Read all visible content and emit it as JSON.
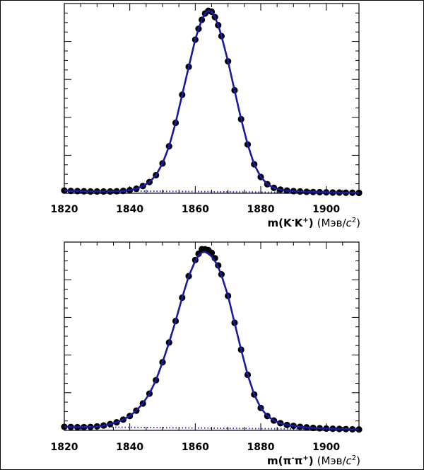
{
  "chart_data": [
    {
      "type": "scatter",
      "xlim": [
        1820,
        1910
      ],
      "ylim": [
        0,
        1.05
      ],
      "x_ticks": [
        "1820",
        "1840",
        "1860",
        "1880",
        "1900"
      ],
      "xlabel_main": "m(K",
      "xlabel_sup1": "-",
      "xlabel_mid": "K",
      "xlabel_sup2": "+",
      "xlabel_close": ")",
      "xlabel_units": "(Мэв/",
      "xlabel_c": "c",
      "xlabel_units_sup": "2",
      "xlabel_units_close": ")",
      "grid": false,
      "colors": {
        "points": "#000000",
        "fit": "#1a1aa0",
        "background": "#2a2ad0"
      },
      "series": [
        {
          "kind": "points",
          "x": [
            1820,
            1822,
            1824,
            1826,
            1828,
            1830,
            1832,
            1834,
            1836,
            1838,
            1840,
            1842,
            1844,
            1846,
            1848,
            1850,
            1852,
            1854,
            1856,
            1858,
            1860,
            1861,
            1862,
            1863,
            1864,
            1865,
            1866,
            1867,
            1868,
            1870,
            1872,
            1874,
            1876,
            1878,
            1880,
            1882,
            1884,
            1886,
            1888,
            1890,
            1892,
            1894,
            1896,
            1898,
            1900,
            1902,
            1904,
            1906,
            1908,
            1910
          ],
          "y": [
            0.015,
            0.013,
            0.012,
            0.011,
            0.01,
            0.01,
            0.01,
            0.01,
            0.011,
            0.013,
            0.017,
            0.025,
            0.04,
            0.062,
            0.1,
            0.165,
            0.26,
            0.39,
            0.545,
            0.7,
            0.85,
            0.91,
            0.96,
            0.995,
            1.01,
            1.005,
            0.975,
            0.93,
            0.87,
            0.73,
            0.57,
            0.41,
            0.27,
            0.16,
            0.09,
            0.05,
            0.03,
            0.02,
            0.015,
            0.012,
            0.01,
            0.008,
            0.007,
            0.006,
            0.005,
            0.004,
            0.004,
            0.003,
            0.003,
            0.002
          ]
        },
        {
          "kind": "fit-line",
          "x": [
            1820,
            1822,
            1824,
            1826,
            1828,
            1830,
            1832,
            1834,
            1836,
            1838,
            1840,
            1842,
            1844,
            1846,
            1848,
            1850,
            1852,
            1854,
            1856,
            1858,
            1860,
            1861,
            1862,
            1863,
            1864,
            1865,
            1866,
            1867,
            1868,
            1870,
            1872,
            1874,
            1876,
            1878,
            1880,
            1882,
            1884,
            1886,
            1888,
            1890,
            1892,
            1894,
            1896,
            1898,
            1900,
            1902,
            1904,
            1906,
            1908,
            1910
          ],
          "y": [
            0.015,
            0.013,
            0.012,
            0.011,
            0.01,
            0.01,
            0.01,
            0.01,
            0.011,
            0.013,
            0.017,
            0.025,
            0.04,
            0.062,
            0.1,
            0.165,
            0.26,
            0.39,
            0.545,
            0.7,
            0.85,
            0.91,
            0.96,
            0.995,
            1.01,
            1.005,
            0.975,
            0.93,
            0.87,
            0.73,
            0.57,
            0.41,
            0.27,
            0.16,
            0.09,
            0.05,
            0.03,
            0.02,
            0.015,
            0.012,
            0.01,
            0.008,
            0.007,
            0.006,
            0.005,
            0.004,
            0.004,
            0.003,
            0.003,
            0.002
          ]
        },
        {
          "kind": "background-dotted",
          "x": [
            1820,
            1910
          ],
          "y": [
            0.015,
            0.002
          ]
        }
      ]
    },
    {
      "type": "scatter",
      "xlim": [
        1820,
        1910
      ],
      "ylim": [
        0,
        1.05
      ],
      "x_ticks": [
        "1820",
        "1840",
        "1860",
        "1880",
        "1900"
      ],
      "xlabel_main": "m(π",
      "xlabel_sup1": "-",
      "xlabel_mid": "π",
      "xlabel_sup2": "+",
      "xlabel_close": ")",
      "xlabel_units": "(Мэв/",
      "xlabel_c": "c",
      "xlabel_units_sup": "2",
      "xlabel_units_close": ")",
      "grid": false,
      "colors": {
        "points": "#000000",
        "fit": "#1a1aa0",
        "background": "#2a2ad0"
      },
      "series": [
        {
          "kind": "points",
          "x": [
            1820,
            1822,
            1824,
            1826,
            1828,
            1830,
            1832,
            1834,
            1836,
            1838,
            1840,
            1842,
            1844,
            1846,
            1848,
            1850,
            1852,
            1854,
            1856,
            1858,
            1860,
            1861,
            1862,
            1863,
            1864,
            1865,
            1866,
            1867,
            1868,
            1870,
            1872,
            1874,
            1876,
            1878,
            1880,
            1882,
            1884,
            1886,
            1888,
            1890,
            1892,
            1894,
            1896,
            1898,
            1900,
            1902,
            1904,
            1906,
            1908,
            1910
          ],
          "y": [
            0.02,
            0.019,
            0.018,
            0.018,
            0.019,
            0.022,
            0.027,
            0.035,
            0.045,
            0.06,
            0.08,
            0.11,
            0.15,
            0.205,
            0.28,
            0.38,
            0.49,
            0.61,
            0.74,
            0.86,
            0.95,
            0.985,
            1.01,
            1.01,
            1.005,
            0.99,
            0.96,
            0.92,
            0.87,
            0.75,
            0.6,
            0.45,
            0.31,
            0.2,
            0.125,
            0.08,
            0.055,
            0.04,
            0.03,
            0.025,
            0.02,
            0.017,
            0.014,
            0.012,
            0.01,
            0.009,
            0.008,
            0.007,
            0.006,
            0.005
          ]
        },
        {
          "kind": "fit-line",
          "x": [
            1820,
            1822,
            1824,
            1826,
            1828,
            1830,
            1832,
            1834,
            1836,
            1838,
            1840,
            1842,
            1844,
            1846,
            1848,
            1850,
            1852,
            1854,
            1856,
            1858,
            1860,
            1861,
            1862,
            1863,
            1864,
            1865,
            1866,
            1867,
            1868,
            1870,
            1872,
            1874,
            1876,
            1878,
            1880,
            1882,
            1884,
            1886,
            1888,
            1890,
            1892,
            1894,
            1896,
            1898,
            1900,
            1902,
            1904,
            1906,
            1908,
            1910
          ],
          "y": [
            0.02,
            0.019,
            0.018,
            0.018,
            0.019,
            0.022,
            0.027,
            0.035,
            0.045,
            0.06,
            0.08,
            0.11,
            0.15,
            0.205,
            0.28,
            0.38,
            0.49,
            0.61,
            0.74,
            0.86,
            0.945,
            0.975,
            0.992,
            0.995,
            0.985,
            0.97,
            0.945,
            0.91,
            0.865,
            0.75,
            0.6,
            0.45,
            0.31,
            0.2,
            0.125,
            0.08,
            0.055,
            0.04,
            0.03,
            0.025,
            0.02,
            0.017,
            0.014,
            0.012,
            0.01,
            0.009,
            0.008,
            0.007,
            0.006,
            0.005
          ]
        },
        {
          "kind": "background-dotted",
          "x": [
            1820,
            1910
          ],
          "y": [
            0.02,
            0.005
          ]
        }
      ]
    }
  ]
}
